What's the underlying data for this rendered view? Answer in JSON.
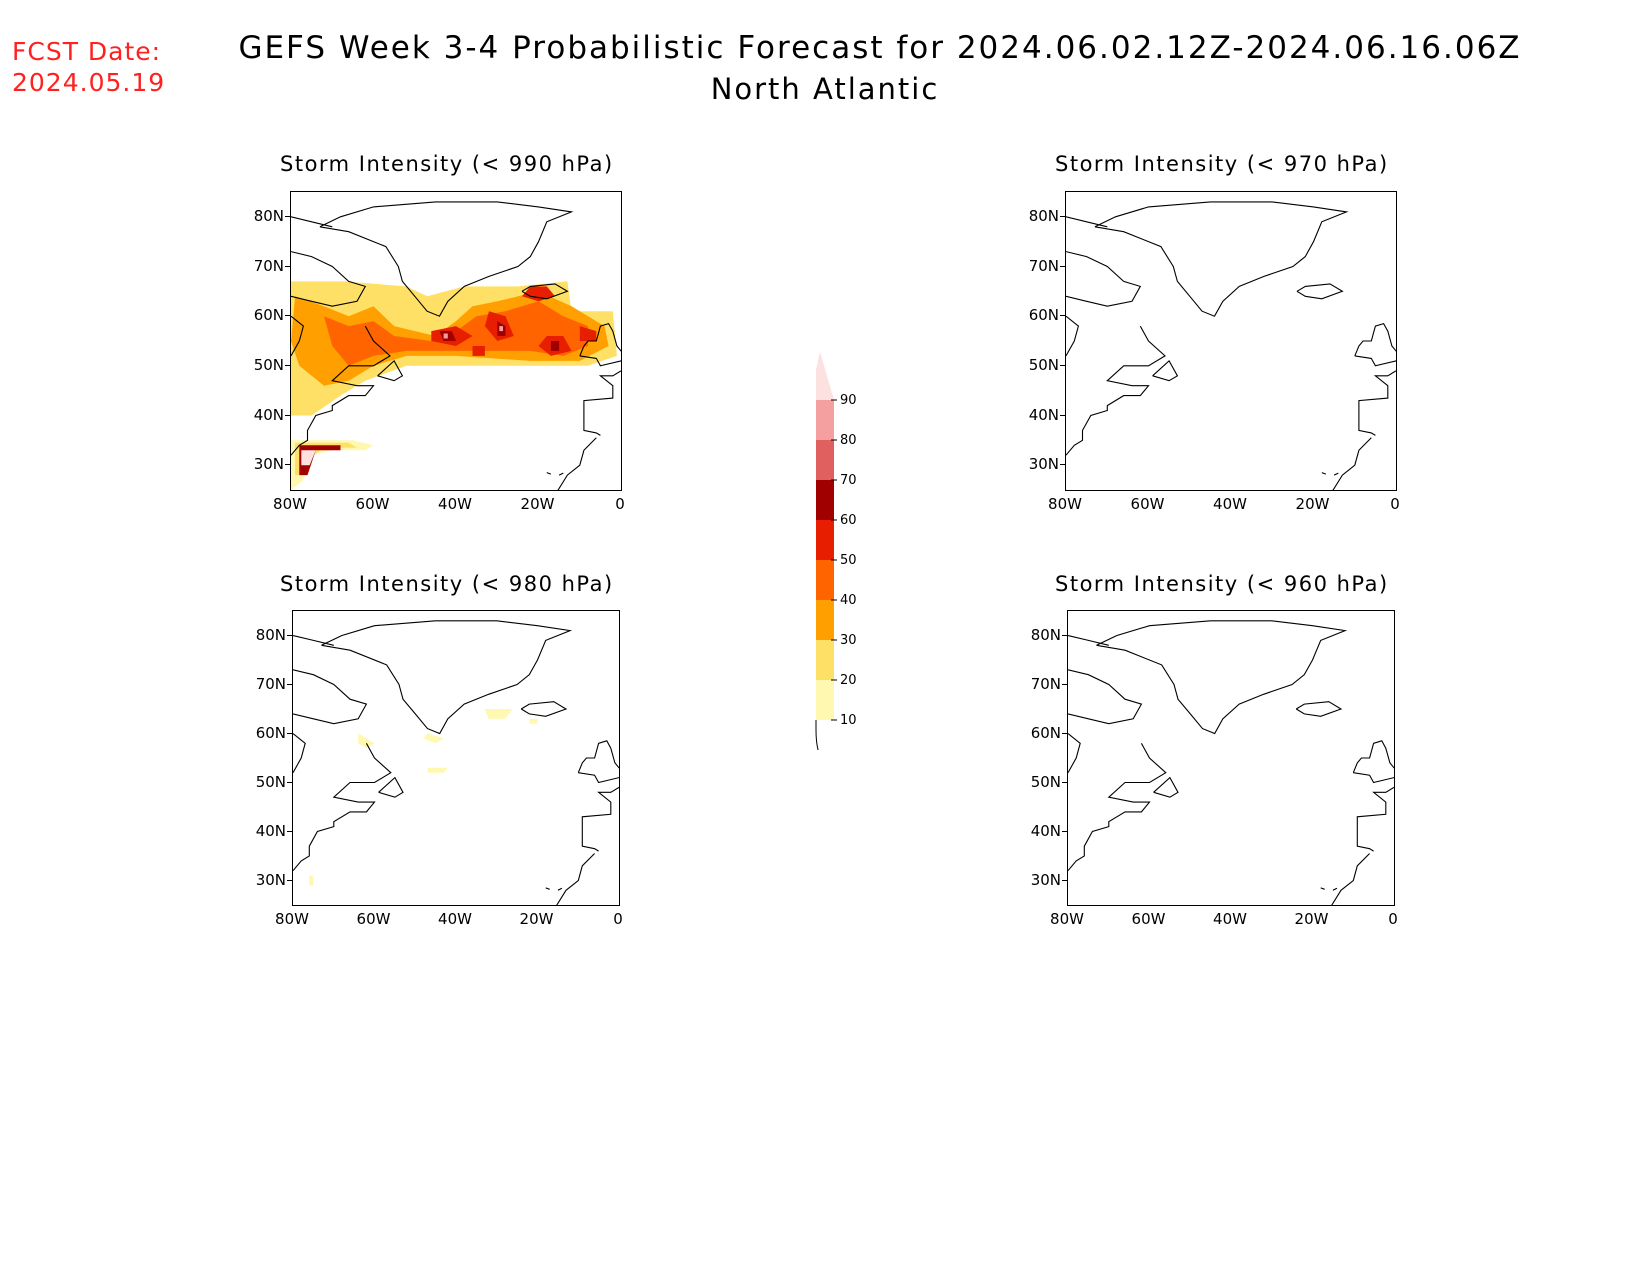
{
  "header": {
    "fcst_label": "FCST Date:",
    "fcst_date": "2024.05.19",
    "title": "GEFS Week 3-4 Probabilistic Forecast for 2024.06.02.12Z-2024.06.16.06Z",
    "subtitle": "North Atlantic"
  },
  "axes": {
    "lat_ticks": [
      "80N",
      "70N",
      "60N",
      "50N",
      "40N",
      "30N"
    ],
    "lon_ticks": [
      "80W",
      "60W",
      "40W",
      "20W",
      "0"
    ]
  },
  "panels": [
    {
      "id": "p990",
      "title": "Storm Intensity (< 990 hPa)"
    },
    {
      "id": "p970",
      "title": "Storm Intensity (< 970 hPa)"
    },
    {
      "id": "p980",
      "title": "Storm Intensity (< 980 hPa)"
    },
    {
      "id": "p960",
      "title": "Storm Intensity (< 960 hPa)"
    }
  ],
  "colorbar": {
    "levels": [
      "10",
      "20",
      "30",
      "40",
      "50",
      "60",
      "70",
      "80",
      "90"
    ],
    "colors": [
      "#fff8b0",
      "#ffe066",
      "#ffa000",
      "#ff6400",
      "#e81e00",
      "#a00000",
      "#e06060",
      "#f4a0a0",
      "#fde0e0"
    ]
  }
}
